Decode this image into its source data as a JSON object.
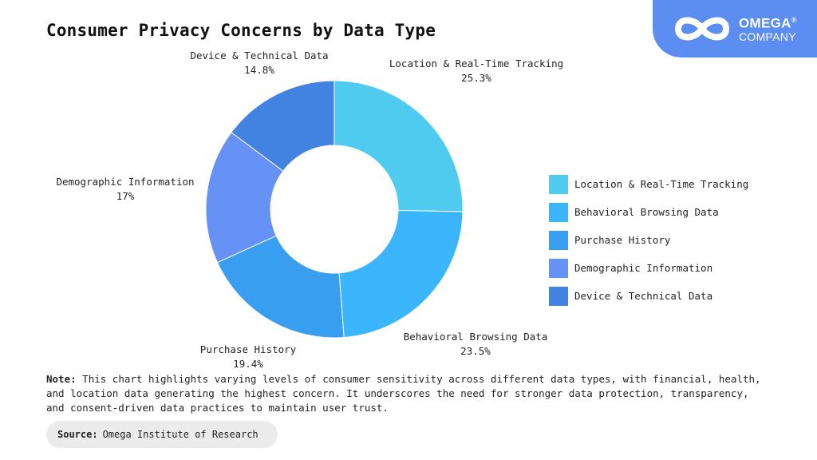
{
  "logo": {
    "name": "OMEGA",
    "registered": "®",
    "sub": "COMPANY",
    "icon": "infinity-icon"
  },
  "note": {
    "label": "Note:",
    "text": "This chart highlights varying levels of consumer sensitivity across different data types, with financial, health, and location data generating the highest concern. It underscores the need for stronger data protection, transparency, and consent-driven data practices to maintain user trust."
  },
  "source": {
    "label": "Source:",
    "text": "Omega Institute of Research"
  },
  "colors": {
    "accent": "#5b8ef0",
    "slices": [
      "#4ecbee",
      "#3bb5fb",
      "#3a9ef0",
      "#6592f4",
      "#4282e0"
    ]
  },
  "chart_data": {
    "type": "pie",
    "variant": "donut",
    "title": "Consumer Privacy Concerns by Data Type",
    "unit": "%",
    "start_angle_deg": 0,
    "direction": "clockwise",
    "legend_position": "right",
    "categories": [
      "Location & Real-Time Tracking",
      "Behavioral Browsing Data",
      "Purchase History",
      "Demographic Information",
      "Device & Technical Data"
    ],
    "values": [
      25.3,
      23.5,
      19.4,
      17,
      14.8
    ],
    "value_labels": [
      "25.3%",
      "23.5%",
      "19.4%",
      "17%",
      "14.8%"
    ]
  }
}
